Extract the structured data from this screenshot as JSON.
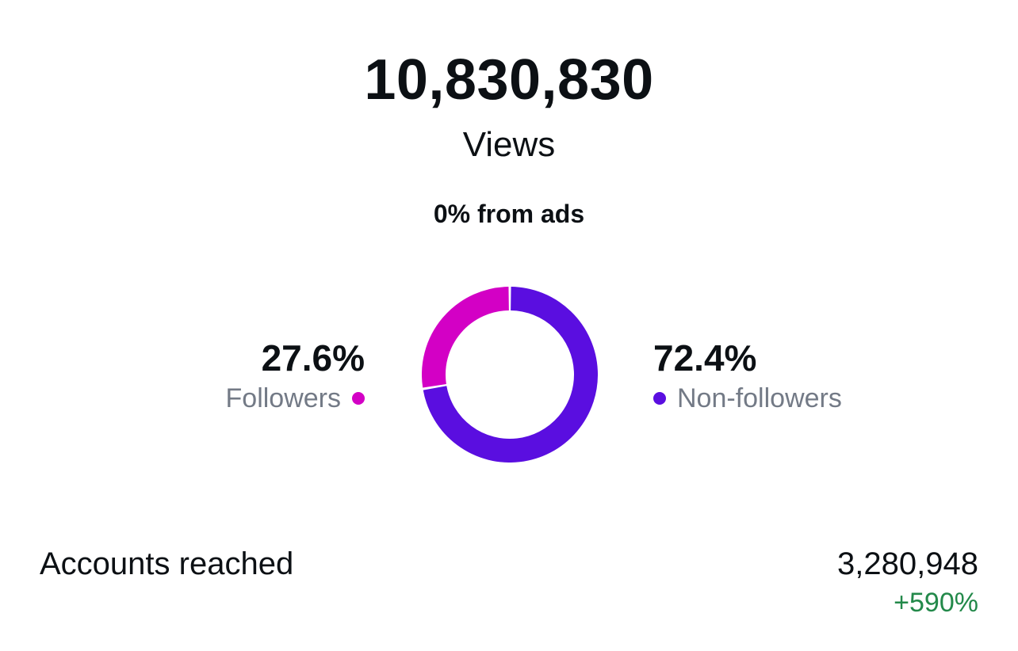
{
  "views": {
    "count": "10,830,830",
    "label": "Views",
    "ads_line": "0% from ads"
  },
  "breakdown": {
    "followers": {
      "percent": "27.6%",
      "label": "Followers",
      "color": "#d300c5"
    },
    "non_followers": {
      "percent": "72.4%",
      "label": "Non-followers",
      "color": "#5a0ee0"
    }
  },
  "chart_data": {
    "type": "pie",
    "categories": [
      "Followers",
      "Non-followers"
    ],
    "values": [
      27.6,
      72.4
    ],
    "colors": [
      "#d300c5",
      "#5a0ee0"
    ]
  },
  "accounts_reached": {
    "label": "Accounts reached",
    "value": "3,280,948",
    "change": "+590%",
    "change_color": "#23894a"
  }
}
